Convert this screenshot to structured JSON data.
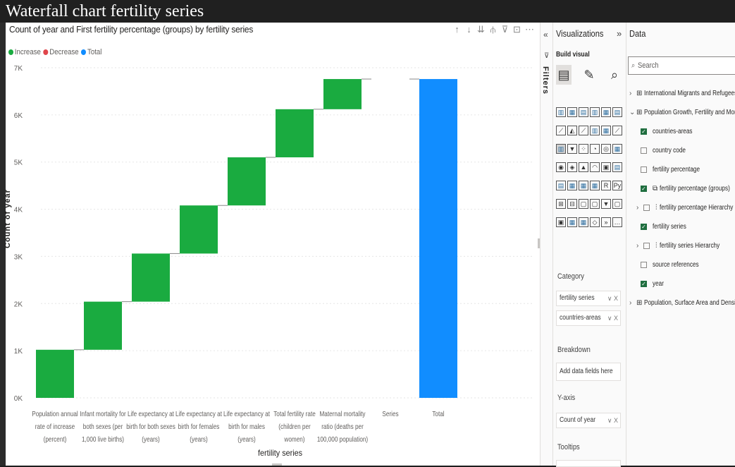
{
  "window_title": "Waterfall chart fertility series",
  "visual": {
    "title": "Count of year and First fertility percentage (groups) by fertility series",
    "toolbar_icons": [
      "sort-ascending-icon",
      "sort-descending-icon",
      "drill-down-icon",
      "expand-hierarchy-icon",
      "filter-icon",
      "focus-mode-icon",
      "more-options-icon"
    ],
    "toolbar_glyphs": [
      "↑",
      "↓",
      "⇊",
      "⫛",
      "⊽",
      "⊡",
      "⋯"
    ]
  },
  "chart_data": {
    "type": "waterfall",
    "title": "Count of year and First fertility percentage (groups) by fertility series",
    "xlabel": "fertility series",
    "ylabel": "Count of year",
    "ylim": [
      0,
      7000
    ],
    "y_ticks": [
      "0K",
      "1K",
      "2K",
      "3K",
      "4K",
      "5K",
      "6K",
      "7K"
    ],
    "legend": [
      {
        "label": "Increase",
        "color": "#1aab40"
      },
      {
        "label": "Decrease",
        "color": "#e0454b"
      },
      {
        "label": "Total",
        "color": "#118dff"
      }
    ],
    "legend_position": "top-left",
    "categories": [
      [
        "Population annual",
        "rate of increase",
        "(percent)"
      ],
      [
        "Infant mortality for",
        "both sexes (per",
        "1,000 live births)"
      ],
      [
        "Life expectancy at",
        "birth for both sexes",
        "(years)"
      ],
      [
        "Life expectancy at",
        "birth for females",
        "(years)"
      ],
      [
        "Life expectancy at",
        "birth for males",
        "(years)"
      ],
      [
        "Total fertility rate",
        "(children per",
        "women)"
      ],
      [
        "Maternal mortality",
        "ratio (deaths per",
        "100,000 population)"
      ],
      [
        "Series"
      ],
      [
        "Total"
      ]
    ],
    "steps": [
      {
        "kind": "increase",
        "start": 0,
        "end": 1020
      },
      {
        "kind": "increase",
        "start": 1020,
        "end": 2040
      },
      {
        "kind": "increase",
        "start": 2040,
        "end": 3060
      },
      {
        "kind": "increase",
        "start": 3060,
        "end": 4080
      },
      {
        "kind": "increase",
        "start": 4080,
        "end": 5100
      },
      {
        "kind": "increase",
        "start": 5100,
        "end": 6120
      },
      {
        "kind": "increase",
        "start": 6120,
        "end": 6760
      },
      {
        "kind": "none",
        "start": 6760,
        "end": 6760
      },
      {
        "kind": "total",
        "start": 0,
        "end": 6760
      }
    ],
    "grid": true
  },
  "filters": {
    "label": "Filters",
    "collapse_glyph": "«",
    "icon_glyph": "⊽"
  },
  "visualizations": {
    "header": "Visualizations",
    "expand_glyph": "»",
    "build_visual": "Build visual",
    "build_icons": [
      {
        "name": "build-visual-icon",
        "glyph": "▤"
      },
      {
        "name": "format-visual-icon",
        "glyph": "✎"
      },
      {
        "name": "analytics-icon",
        "glyph": "⌕"
      }
    ],
    "gallery": [
      "▥",
      "▦",
      "▤",
      "▥",
      "▦",
      "▤",
      "⟋",
      "◭",
      "⟋",
      "▥",
      "▦",
      "⟋",
      "▥",
      "▼",
      "⁘",
      "◔",
      "◎",
      "▦",
      "◉",
      "◈",
      "▲",
      "◠",
      "▣",
      "▤",
      "▤",
      "▦",
      "▦",
      "▦",
      "R",
      "Py",
      "⊞",
      "⊟",
      "▢",
      "▢",
      "▼",
      "▢",
      "▣",
      "▦",
      "▦",
      "◇",
      "»",
      "…"
    ],
    "wells": {
      "category_label": "Category",
      "category_fields": [
        "fertility series",
        "countries-areas"
      ],
      "breakdown_label": "Breakdown",
      "breakdown_placeholder": "Add data fields here",
      "yaxis_label": "Y-axis",
      "yaxis_fields": [
        "Count of year"
      ],
      "tooltips_label": "Tooltips",
      "well_controls": "∨ X"
    }
  },
  "data_pane": {
    "header": "Data",
    "search_placeholder": "Search",
    "search_glyph": "⌕",
    "tables": [
      {
        "name": "International Migrants and Refugees",
        "expanded": false
      },
      {
        "name": "Population Growth, Fertility and Mortality Indicators",
        "expanded": true
      },
      {
        "name": "Population, Surface Area and Density",
        "expanded": false
      }
    ],
    "fields": [
      {
        "name": "countries-areas",
        "checked": true
      },
      {
        "name": "country code",
        "checked": false
      },
      {
        "name": "fertility percentage",
        "checked": false
      },
      {
        "name": "fertility percentage (groups)",
        "checked": true
      },
      {
        "name": "fertility percentage Hierarchy",
        "checked": false
      },
      {
        "name": "fertility series",
        "checked": true
      },
      {
        "name": "fertility series Hierarchy",
        "checked": false
      },
      {
        "name": "source references",
        "checked": false
      },
      {
        "name": "year",
        "checked": true
      }
    ]
  }
}
